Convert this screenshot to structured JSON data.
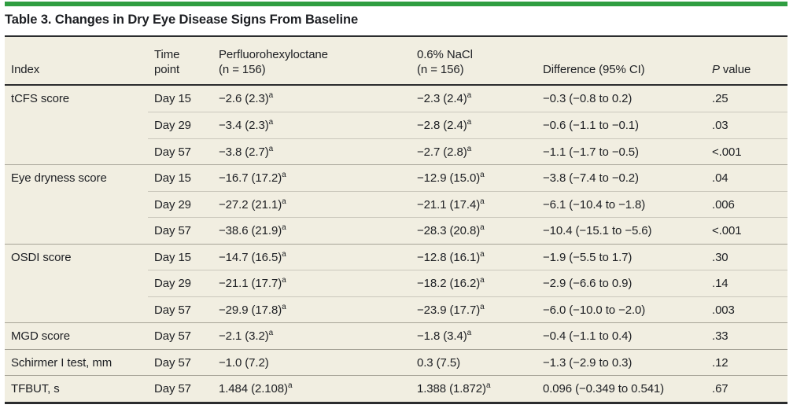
{
  "title": "Table 3. Changes in Dry Eye Disease Signs From Baseline",
  "colors": {
    "accent_green": "#2f9e41",
    "table_background": "#f1eee1",
    "rule_dark": "#2b2c2e",
    "row_line": "#cbc8bc",
    "group_line": "#a6a397",
    "text": "#1d1f23"
  },
  "table": {
    "columns": [
      {
        "line1": "Index"
      },
      {
        "line1": "Time",
        "line2": "point"
      },
      {
        "line1": "Perfluorohexyloctane",
        "line2": "(n = 156)"
      },
      {
        "line1": "0.6% NaCl",
        "line2": "(n = 156)"
      },
      {
        "line1": "Difference (95% CI)"
      },
      {
        "italic": "P",
        "line1": "value"
      }
    ],
    "rows": [
      {
        "group": "start",
        "index": "tCFS score",
        "time": "Day 15",
        "drug": {
          "v": "−2.6 (2.3)",
          "sup": "a"
        },
        "nacl": {
          "v": "−2.3 (2.4)",
          "sup": "a"
        },
        "diff": "−0.3 (−0.8 to 0.2)",
        "p": ".25"
      },
      {
        "group": "inner",
        "index": "",
        "time": "Day 29",
        "drug": {
          "v": "−3.4 (2.3)",
          "sup": "a"
        },
        "nacl": {
          "v": "−2.8 (2.4)",
          "sup": "a"
        },
        "diff": "−0.6 (−1.1 to −0.1)",
        "p": ".03"
      },
      {
        "group": "inner",
        "index": "",
        "time": "Day 57",
        "drug": {
          "v": "−3.8 (2.7)",
          "sup": "a"
        },
        "nacl": {
          "v": "−2.7 (2.8)",
          "sup": "a"
        },
        "diff": "−1.1 (−1.7 to −0.5)",
        "p": "<.001"
      },
      {
        "group": "start",
        "index": "Eye dryness score",
        "time": "Day 15",
        "drug": {
          "v": "−16.7 (17.2)",
          "sup": "a"
        },
        "nacl": {
          "v": "−12.9 (15.0)",
          "sup": "a"
        },
        "diff": "−3.8 (−7.4 to −0.2)",
        "p": ".04"
      },
      {
        "group": "inner",
        "index": "",
        "time": "Day 29",
        "drug": {
          "v": "−27.2 (21.1)",
          "sup": "a"
        },
        "nacl": {
          "v": "−21.1 (17.4)",
          "sup": "a"
        },
        "diff": "−6.1 (−10.4 to −1.8)",
        "p": ".006"
      },
      {
        "group": "inner",
        "index": "",
        "time": "Day 57",
        "drug": {
          "v": "−38.6 (21.9)",
          "sup": "a"
        },
        "nacl": {
          "v": "−28.3 (20.8)",
          "sup": "a"
        },
        "diff": "−10.4 (−15.1 to −5.6)",
        "p": "<.001"
      },
      {
        "group": "start",
        "index": "OSDI score",
        "time": "Day 15",
        "drug": {
          "v": "−14.7 (16.5)",
          "sup": "a"
        },
        "nacl": {
          "v": "−12.8 (16.1)",
          "sup": "a"
        },
        "diff": "−1.9 (−5.5 to 1.7)",
        "p": ".30"
      },
      {
        "group": "inner",
        "index": "",
        "time": "Day 29",
        "drug": {
          "v": "−21.1 (17.7)",
          "sup": "a"
        },
        "nacl": {
          "v": "−18.2 (16.2)",
          "sup": "a"
        },
        "diff": "−2.9 (−6.6 to 0.9)",
        "p": ".14"
      },
      {
        "group": "inner",
        "index": "",
        "time": "Day 57",
        "drug": {
          "v": "−29.9 (17.8)",
          "sup": "a"
        },
        "nacl": {
          "v": "−23.9 (17.7)",
          "sup": "a"
        },
        "diff": "−6.0 (−10.0 to −2.0)",
        "p": ".003"
      },
      {
        "group": "start",
        "index": "MGD score",
        "time": "Day 57",
        "drug": {
          "v": "−2.1 (3.2)",
          "sup": "a"
        },
        "nacl": {
          "v": "−1.8 (3.4)",
          "sup": "a"
        },
        "diff": "−0.4 (−1.1 to 0.4)",
        "p": ".33"
      },
      {
        "group": "start",
        "index": "Schirmer I test, mm",
        "time": "Day 57",
        "drug": {
          "v": "−1.0 (7.2)"
        },
        "nacl": {
          "v": "0.3 (7.5)"
        },
        "diff": "−1.3 (−2.9 to 0.3)",
        "p": ".12"
      },
      {
        "group": "start",
        "index": "TFBUT, s",
        "time": "Day 57",
        "drug": {
          "v": "1.484 (2.108)",
          "sup": "a"
        },
        "nacl": {
          "v": "1.388 (1.872)",
          "sup": "a"
        },
        "diff": "0.096 (−0.349 to 0.541)",
        "p": ".67"
      }
    ]
  }
}
